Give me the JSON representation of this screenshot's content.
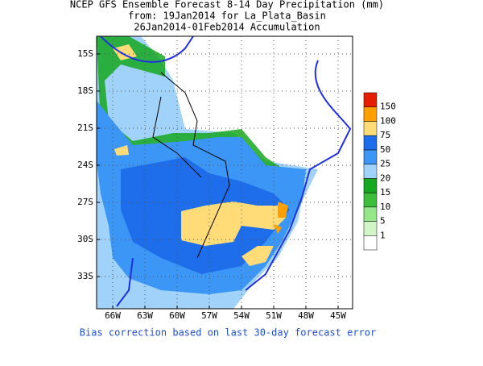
{
  "title": [
    "NCEP GFS Ensemble Forecast 8-14 Day Precipitation (mm)",
    "from: 19Jan2014   for La_Plata_Basin",
    "26Jan2014-01Feb2014 Accumulation"
  ],
  "xlim": [
    -67.5,
    -43.65
  ],
  "ylim": [
    -13.57,
    -35.6
  ],
  "xticks": [
    {
      "value": -66,
      "label": "66W"
    },
    {
      "value": -63,
      "label": "63W"
    },
    {
      "value": -60,
      "label": "60W"
    },
    {
      "value": -57,
      "label": "57W"
    },
    {
      "value": -54,
      "label": "54W"
    },
    {
      "value": -51,
      "label": "51W"
    },
    {
      "value": -48,
      "label": "48W"
    },
    {
      "value": -45,
      "label": "45W"
    }
  ],
  "yticks": [
    {
      "value": -15,
      "label": "15S"
    },
    {
      "value": -18,
      "label": "18S"
    },
    {
      "value": -21,
      "label": "21S"
    },
    {
      "value": -24,
      "label": "24S"
    },
    {
      "value": -27,
      "label": "27S"
    },
    {
      "value": -30,
      "label": "30S"
    },
    {
      "value": -33,
      "label": "33S"
    }
  ],
  "colorbar": {
    "labels": [
      "1",
      "5",
      "10",
      "15",
      "20",
      "25",
      "50",
      "75",
      "100",
      "150"
    ],
    "colors": [
      "#ffffff",
      "#d2f5c8",
      "#96e68c",
      "#3cbe3c",
      "#16a81e",
      "#a0d2fa",
      "#3c96f5",
      "#1e6eeb",
      "#ffdc78",
      "#ffa000",
      "#e61e00"
    ]
  },
  "footnote": "Bias correction based on last 30-day forecast error"
}
